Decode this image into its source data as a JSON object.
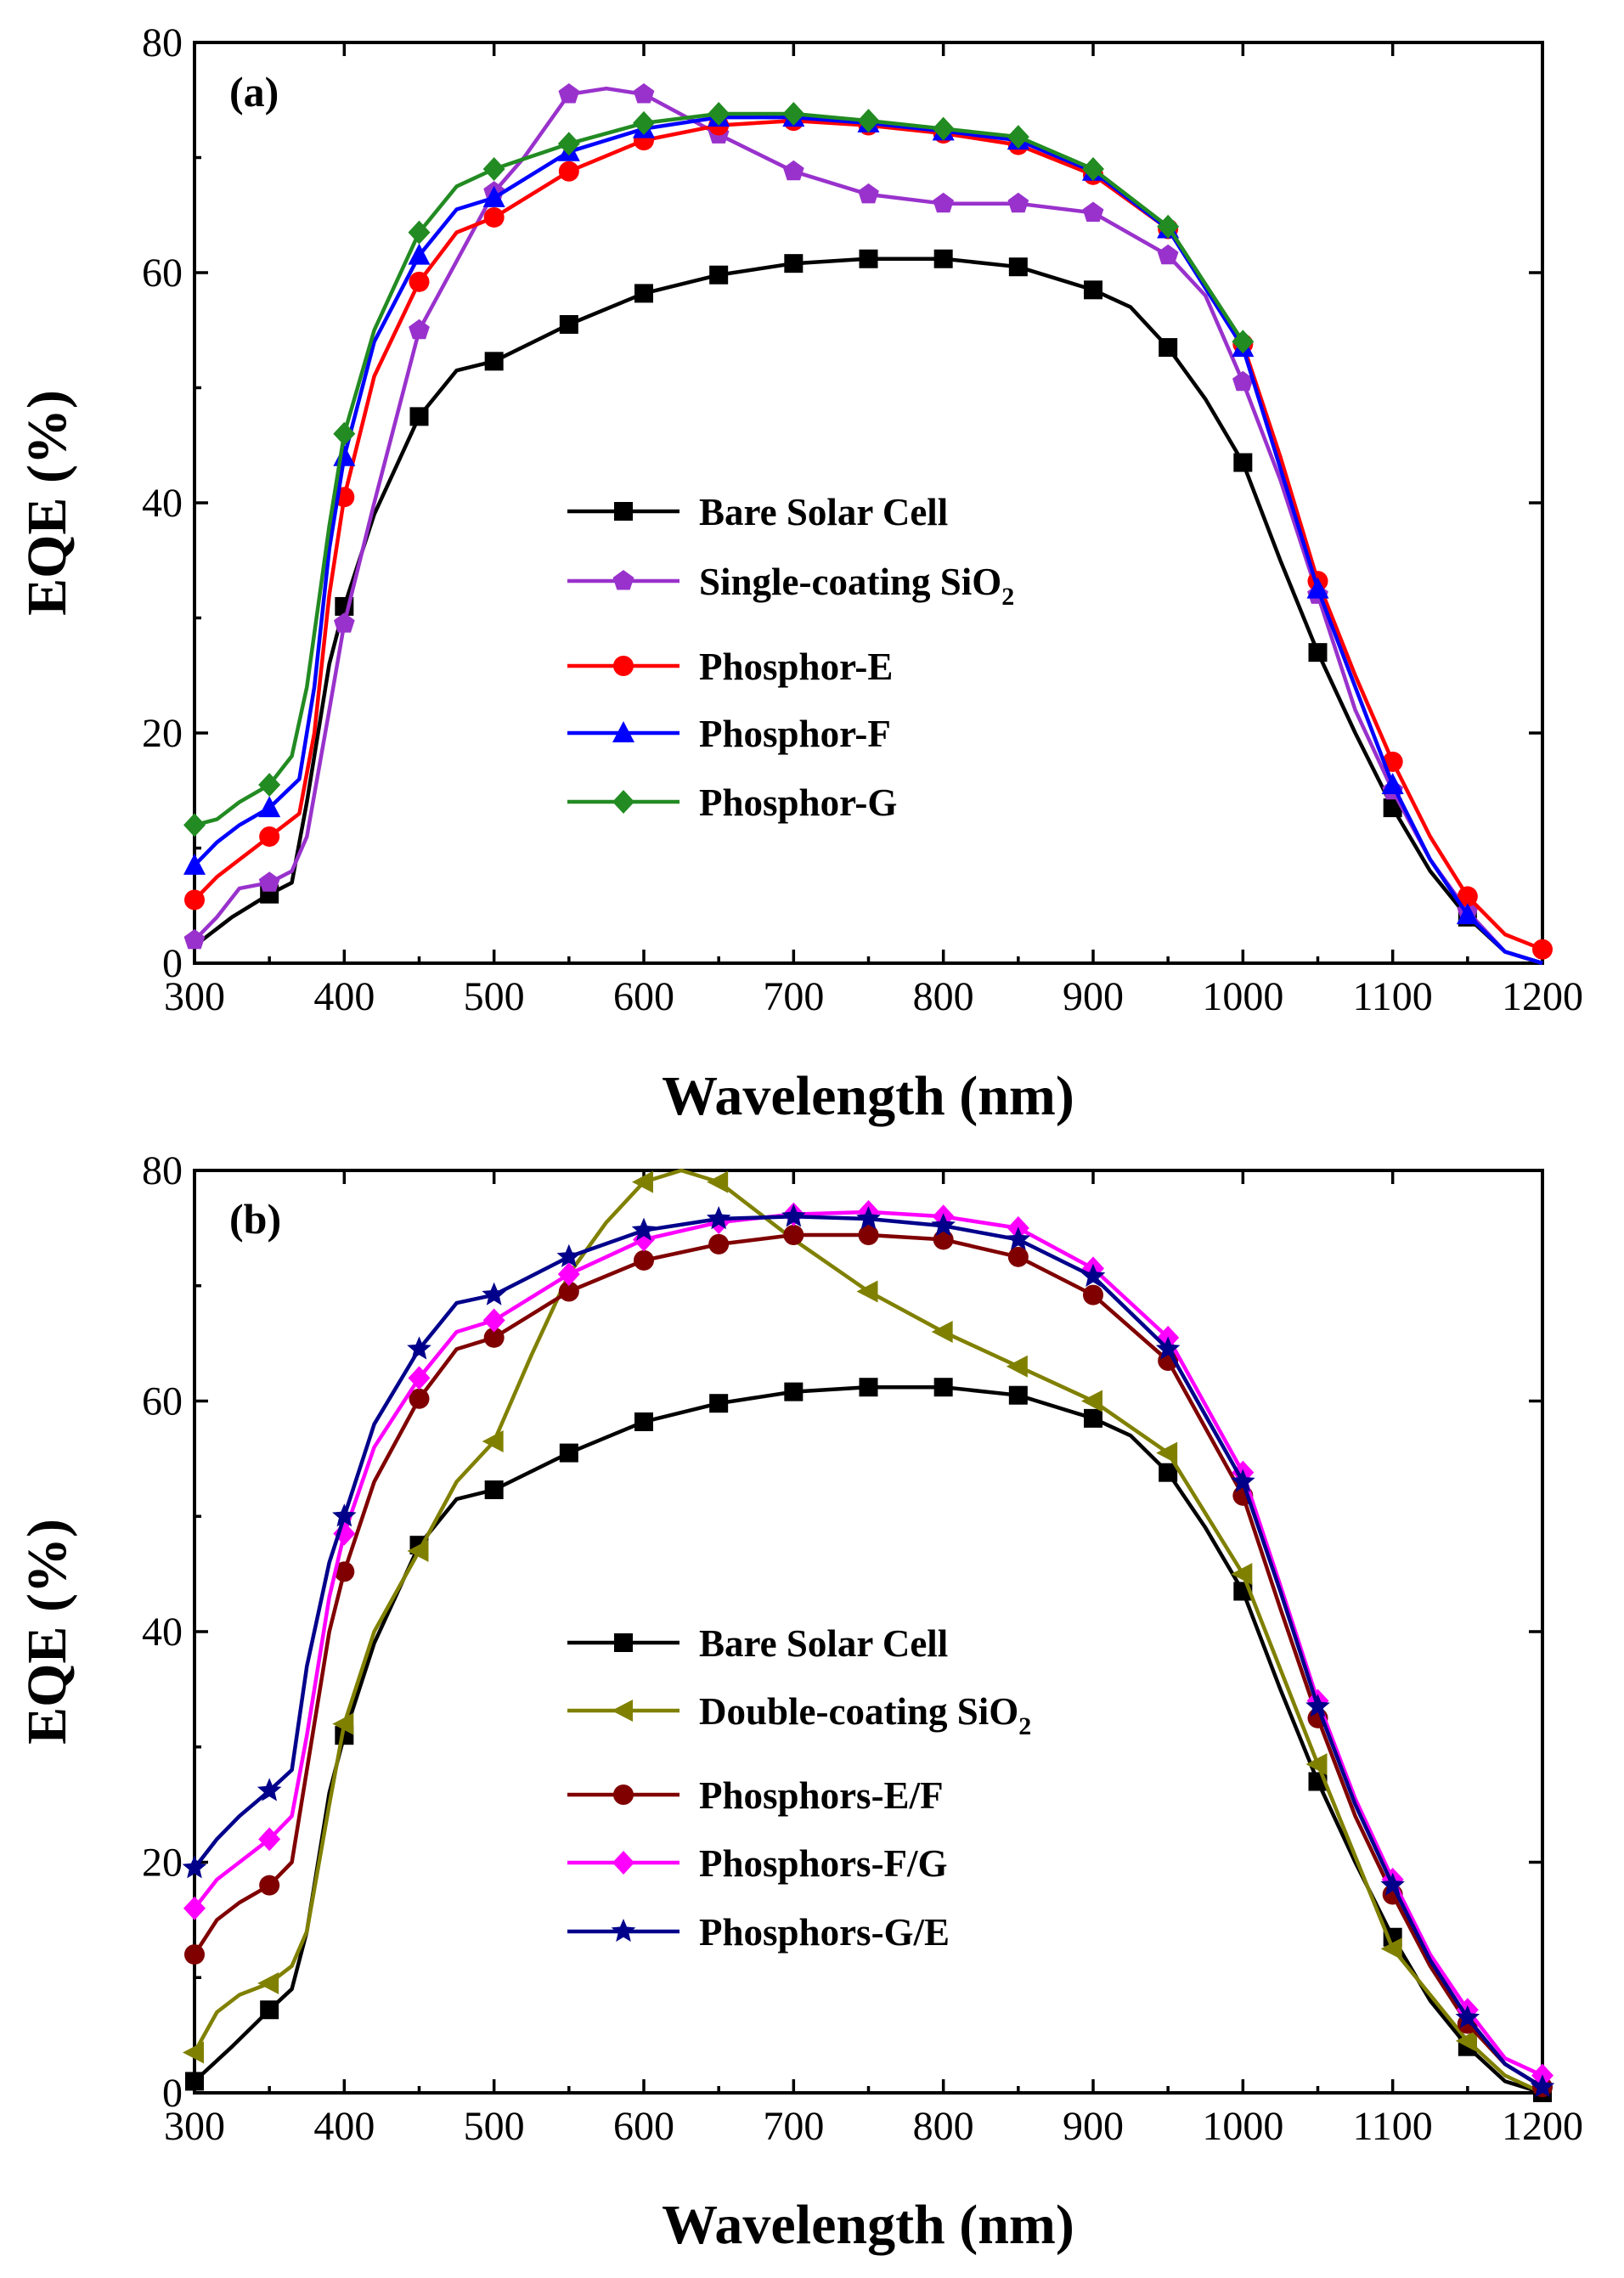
{
  "chart_data": [
    {
      "type": "line",
      "panel_label": "(a)",
      "xlabel": "Wavelength (nm)",
      "ylabel": "EQE (%)",
      "xlim": [
        300,
        1200
      ],
      "ylim": [
        0,
        80
      ],
      "x_ticks": [
        300,
        400,
        500,
        600,
        700,
        800,
        900,
        1000,
        1100,
        1200
      ],
      "y_ticks": [
        0,
        20,
        40,
        60,
        80
      ],
      "legend_position": "center",
      "series": [
        {
          "name": "Bare Solar Cell",
          "label_main": "Bare Solar Cell",
          "label_sub": "",
          "color": "#000000",
          "marker": "square",
          "x": [
            300,
            325,
            350,
            365,
            375,
            390,
            400,
            420,
            450,
            475,
            500,
            550,
            600,
            650,
            700,
            750,
            800,
            850,
            900,
            925,
            950,
            975,
            1000,
            1025,
            1050,
            1075,
            1100,
            1125,
            1150,
            1175,
            1200
          ],
          "y": [
            1.5,
            4,
            6,
            7,
            14,
            26,
            31,
            39,
            47.5,
            51.5,
            52.3,
            55.5,
            58.2,
            59.8,
            60.8,
            61.2,
            61.2,
            60.5,
            58.5,
            57,
            53.5,
            49,
            43.5,
            35,
            27,
            20,
            13.5,
            8,
            4,
            1,
            0
          ],
          "marker_x": [
            350,
            400,
            450,
            500,
            550,
            600,
            650,
            700,
            750,
            800,
            850,
            900,
            950,
            1000,
            1050,
            1100,
            1150
          ]
        },
        {
          "name": "Single-coating SiO2",
          "label_main": "Single-coating SiO",
          "label_sub": "2",
          "color": "#9932CC",
          "marker": "pentagon",
          "x": [
            300,
            315,
            330,
            350,
            365,
            375,
            390,
            400,
            420,
            450,
            500,
            520,
            550,
            575,
            600,
            650,
            700,
            750,
            800,
            850,
            900,
            950,
            975,
            1000,
            1025,
            1050,
            1075,
            1100,
            1125,
            1150,
            1175,
            1200
          ],
          "y": [
            2,
            4,
            6.5,
            7,
            8,
            11,
            22,
            29.5,
            40,
            55,
            67,
            70,
            75.5,
            76,
            75.5,
            72,
            68.8,
            66.8,
            66,
            66,
            65.2,
            61.5,
            58,
            50.5,
            42,
            32,
            22,
            15,
            9,
            4.5,
            1,
            0
          ],
          "marker_x": [
            300,
            350,
            400,
            450,
            500,
            550,
            600,
            650,
            700,
            750,
            800,
            850,
            900,
            950,
            1000,
            1050,
            1100,
            1150
          ]
        },
        {
          "name": "Phosphor-E",
          "label_main": "Phosphor-E",
          "label_sub": "",
          "color": "#FF0000",
          "marker": "circle",
          "x": [
            300,
            315,
            330,
            350,
            370,
            380,
            390,
            400,
            420,
            450,
            475,
            500,
            550,
            600,
            650,
            700,
            750,
            800,
            850,
            900,
            950,
            1000,
            1025,
            1050,
            1075,
            1100,
            1125,
            1150,
            1175,
            1200
          ],
          "y": [
            5.5,
            7.5,
            9,
            11,
            13,
            20,
            32,
            40.5,
            51,
            59.2,
            63.5,
            64.8,
            68.8,
            71.5,
            72.8,
            73.2,
            72.8,
            72.1,
            71.1,
            68.5,
            63.8,
            53.8,
            44,
            33.2,
            25,
            17.5,
            11,
            5.8,
            2.5,
            1.2
          ],
          "marker_x": [
            300,
            350,
            400,
            450,
            500,
            550,
            600,
            650,
            700,
            750,
            800,
            850,
            900,
            950,
            1000,
            1050,
            1100,
            1150,
            1200
          ]
        },
        {
          "name": "Phosphor-F",
          "label_main": "Phosphor-F",
          "label_sub": "",
          "color": "#0000FF",
          "marker": "triangle-up",
          "x": [
            300,
            315,
            330,
            350,
            370,
            380,
            390,
            400,
            420,
            450,
            475,
            500,
            550,
            600,
            650,
            700,
            750,
            800,
            850,
            900,
            950,
            1000,
            1025,
            1050,
            1075,
            1100,
            1125,
            1150,
            1175,
            1200
          ],
          "y": [
            8.5,
            10.5,
            12,
            13.5,
            16,
            24,
            36,
            44,
            54,
            61.5,
            65.5,
            66.5,
            70.5,
            72.5,
            73.5,
            73.5,
            73,
            72.3,
            71.5,
            68.8,
            63.8,
            53.5,
            43,
            32.5,
            24,
            15.5,
            9,
            4.2,
            1,
            0
          ],
          "marker_x": [
            300,
            350,
            400,
            450,
            500,
            550,
            600,
            650,
            700,
            750,
            800,
            850,
            900,
            950,
            1000,
            1050,
            1100,
            1150
          ]
        },
        {
          "name": "Phosphor-G",
          "label_main": "Phosphor-G",
          "label_sub": "",
          "color": "#228B22",
          "marker": "diamond",
          "x": [
            300,
            315,
            330,
            350,
            365,
            375,
            390,
            400,
            420,
            450,
            475,
            500,
            550,
            600,
            650,
            700,
            750,
            800,
            850,
            900,
            950,
            1000
          ],
          "y": [
            12,
            12.5,
            14,
            15.5,
            18,
            24,
            38,
            46,
            55,
            63.5,
            67.5,
            69,
            71.2,
            73,
            73.8,
            73.8,
            73.2,
            72.5,
            71.8,
            69,
            64,
            54
          ],
          "marker_x": [
            300,
            350,
            400,
            450,
            500,
            550,
            600,
            650,
            700,
            750,
            800,
            850,
            900,
            950,
            1000
          ]
        }
      ]
    },
    {
      "type": "line",
      "panel_label": "(b)",
      "xlabel": "Wavelength (nm)",
      "ylabel": "EQE (%)",
      "xlim": [
        300,
        1200
      ],
      "ylim": [
        0,
        80
      ],
      "x_ticks": [
        300,
        400,
        500,
        600,
        700,
        800,
        900,
        1000,
        1100,
        1200
      ],
      "y_ticks": [
        0,
        20,
        40,
        60,
        80
      ],
      "legend_position": "center",
      "series": [
        {
          "name": "Bare Solar Cell",
          "label_main": "Bare Solar Cell",
          "label_sub": "",
          "color": "#000000",
          "marker": "square",
          "x": [
            300,
            325,
            350,
            365,
            375,
            390,
            400,
            420,
            450,
            475,
            500,
            550,
            600,
            650,
            700,
            750,
            800,
            850,
            900,
            925,
            950,
            975,
            1000,
            1025,
            1050,
            1075,
            1100,
            1125,
            1150,
            1175,
            1200
          ],
          "y": [
            1,
            4,
            7.2,
            9,
            14,
            26,
            31,
            39,
            47.5,
            51.5,
            52.3,
            55.5,
            58.2,
            59.8,
            60.8,
            61.2,
            61.2,
            60.5,
            58.5,
            57,
            53.8,
            49,
            43.5,
            35,
            27,
            20,
            13.5,
            8,
            4,
            1,
            0
          ],
          "marker_x": [
            300,
            350,
            400,
            450,
            500,
            550,
            600,
            650,
            700,
            750,
            800,
            850,
            900,
            950,
            1000,
            1050,
            1100,
            1150,
            1200
          ]
        },
        {
          "name": "Double-coating SiO2",
          "label_main": "Double-coating SiO",
          "label_sub": "2",
          "color": "#808000",
          "marker": "triangle-left",
          "x": [
            300,
            315,
            330,
            350,
            365,
            375,
            390,
            400,
            420,
            450,
            475,
            500,
            525,
            550,
            575,
            600,
            625,
            650,
            700,
            750,
            800,
            850,
            900,
            950,
            1000,
            1050,
            1100,
            1150,
            1175,
            1200
          ],
          "y": [
            3.5,
            7,
            8.5,
            9.5,
            11,
            14,
            25,
            32,
            40,
            47,
            53,
            56.5,
            64,
            71,
            75.5,
            79,
            80,
            79,
            74,
            69.5,
            66,
            63,
            60,
            55.5,
            45,
            28.5,
            12.5,
            4.5,
            1.5,
            0
          ],
          "marker_x": [
            300,
            350,
            400,
            450,
            500,
            600,
            650,
            750,
            800,
            850,
            900,
            950,
            1000,
            1050,
            1100,
            1150
          ]
        },
        {
          "name": "Phosphors-E/F",
          "label_main": "Phosphors-E/F",
          "label_sub": "",
          "color": "#800000",
          "marker": "circle",
          "x": [
            300,
            315,
            330,
            350,
            365,
            375,
            390,
            400,
            420,
            450,
            475,
            500,
            550,
            600,
            650,
            700,
            750,
            800,
            850,
            900,
            950,
            1000,
            1025,
            1050,
            1075,
            1100,
            1125,
            1150,
            1175,
            1200
          ],
          "y": [
            12,
            15,
            16.5,
            18,
            20,
            28,
            40,
            45.2,
            53,
            60.2,
            64.5,
            65.5,
            69.5,
            72.2,
            73.6,
            74.4,
            74.4,
            74,
            72.5,
            69.2,
            63.5,
            51.8,
            42,
            32.5,
            24,
            17.2,
            11,
            6,
            2.5,
            0.5
          ],
          "marker_x": [
            300,
            350,
            400,
            450,
            500,
            550,
            600,
            650,
            700,
            750,
            800,
            850,
            900,
            950,
            1000,
            1050,
            1100,
            1150,
            1200
          ]
        },
        {
          "name": "Phosphors-F/G",
          "label_main": "Phosphors-F/G",
          "label_sub": "",
          "color": "#FF00FF",
          "marker": "diamond",
          "x": [
            300,
            315,
            330,
            350,
            365,
            375,
            390,
            400,
            420,
            450,
            475,
            500,
            550,
            600,
            650,
            700,
            750,
            800,
            850,
            900,
            950,
            1000,
            1025,
            1050,
            1075,
            1100,
            1125,
            1150,
            1175,
            1200
          ],
          "y": [
            16,
            18.5,
            20,
            22,
            24,
            31,
            43,
            48.5,
            56,
            62,
            66,
            67,
            71,
            74,
            75.5,
            76.2,
            76.4,
            76,
            75,
            71.5,
            65.5,
            53.8,
            44,
            34,
            25.5,
            18.5,
            12,
            7.2,
            3,
            1.5
          ],
          "marker_x": [
            300,
            350,
            400,
            450,
            500,
            550,
            600,
            650,
            700,
            750,
            800,
            850,
            900,
            950,
            1000,
            1050,
            1100,
            1150,
            1200
          ]
        },
        {
          "name": "Phosphors-G/E",
          "label_main": "Phosphors-G/E",
          "label_sub": "",
          "color": "#00008B",
          "marker": "star",
          "x": [
            300,
            315,
            330,
            350,
            365,
            375,
            390,
            400,
            420,
            450,
            475,
            500,
            550,
            600,
            650,
            700,
            750,
            800,
            850,
            900,
            950,
            1000,
            1025,
            1050,
            1075,
            1100,
            1125,
            1150,
            1175,
            1200
          ],
          "y": [
            19.5,
            22,
            24,
            26.2,
            28,
            37,
            46,
            50,
            58,
            64.5,
            68.5,
            69.2,
            72.5,
            74.8,
            75.8,
            76,
            75.8,
            75.2,
            74,
            70.8,
            64.5,
            53,
            43.5,
            33.5,
            25,
            18,
            11.5,
            6.5,
            2.5,
            0.5
          ],
          "marker_x": [
            300,
            350,
            400,
            450,
            500,
            550,
            600,
            650,
            700,
            750,
            800,
            850,
            900,
            950,
            1000,
            1050,
            1100,
            1150,
            1200
          ]
        }
      ]
    }
  ]
}
